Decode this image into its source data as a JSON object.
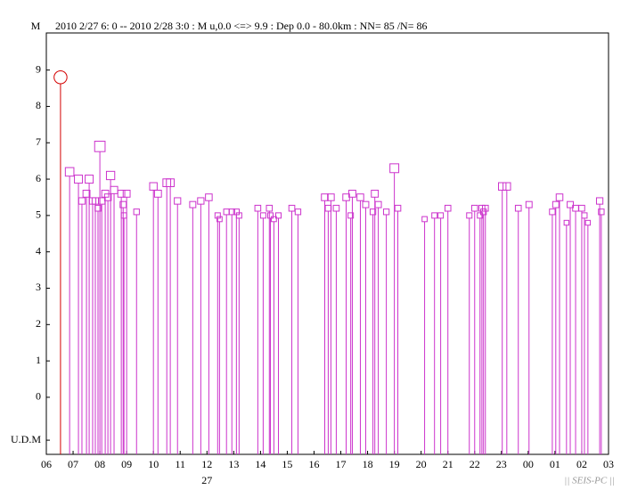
{
  "chart_data": {
    "type": "scatter",
    "y_label": "M",
    "title": "2010 2/27 6: 0 -- 2010 2/28 3:0  : M u,0.0 <=> 9.9   :  Dep 0.0 - 80.0km :  NN= 85 /N= 86",
    "date_label": "27",
    "date_label_x": 6,
    "footer": "|| SEIS-PC ||",
    "xlim": [
      0,
      21
    ],
    "ylim": [
      -1.57,
      10.02
    ],
    "xticks": [
      {
        "value": 0,
        "label": "06"
      },
      {
        "value": 1,
        "label": "07"
      },
      {
        "value": 2,
        "label": "08"
      },
      {
        "value": 3,
        "label": "09"
      },
      {
        "value": 4,
        "label": "10"
      },
      {
        "value": 5,
        "label": "11"
      },
      {
        "value": 6,
        "label": "12"
      },
      {
        "value": 7,
        "label": "13"
      },
      {
        "value": 8,
        "label": "14"
      },
      {
        "value": 9,
        "label": "15"
      },
      {
        "value": 10,
        "label": "16"
      },
      {
        "value": 11,
        "label": "17"
      },
      {
        "value": 12,
        "label": "18"
      },
      {
        "value": 13,
        "label": "19"
      },
      {
        "value": 14,
        "label": "20"
      },
      {
        "value": 15,
        "label": "21"
      },
      {
        "value": 16,
        "label": "22"
      },
      {
        "value": 17,
        "label": "23"
      },
      {
        "value": 18,
        "label": "00"
      },
      {
        "value": 19,
        "label": "01"
      },
      {
        "value": 20,
        "label": "02"
      },
      {
        "value": 21,
        "label": "03"
      }
    ],
    "yticks": [
      {
        "value": -1.18,
        "label": "U.D.M"
      },
      0,
      1,
      2,
      3,
      4,
      5,
      6,
      7,
      8,
      9
    ],
    "series": [
      {
        "color": "#d40000",
        "marker": "circle",
        "x": [
          0.53
        ],
        "values": [
          8.8
        ]
      },
      {
        "color": "#cc33cc",
        "marker": "square",
        "x": [
          0.87,
          1.2,
          1.33,
          1.5,
          1.6,
          1.73,
          1.83,
          1.93,
          2.0,
          2.07,
          2.2,
          2.3,
          2.4,
          2.53,
          2.8,
          2.87,
          2.9,
          3.0,
          3.37,
          4.0,
          4.17,
          4.5,
          4.63,
          4.9,
          5.47,
          5.77,
          6.07,
          6.4,
          6.47,
          6.73,
          6.93,
          7.1,
          7.2,
          7.9,
          8.1,
          8.33,
          8.37,
          8.5,
          8.67,
          9.17,
          9.4,
          10.4,
          10.53,
          10.63,
          10.83,
          11.2,
          11.37,
          11.43,
          11.73,
          11.93,
          12.2,
          12.27,
          12.4,
          12.7,
          13.0,
          13.13,
          14.13,
          14.5,
          14.73,
          15.0,
          15.8,
          16.0,
          16.2,
          16.27,
          16.33,
          16.4,
          17.03,
          17.2,
          17.63,
          18.03,
          18.9,
          19.03,
          19.17,
          19.43,
          19.57,
          19.77,
          20.0,
          20.1,
          20.23,
          20.67,
          20.73
        ],
        "values": [
          6.2,
          6.0,
          5.4,
          5.6,
          6.0,
          5.4,
          5.4,
          5.2,
          6.9,
          5.4,
          5.6,
          5.5,
          6.1,
          5.7,
          5.6,
          5.3,
          5.0,
          5.6,
          5.1,
          5.8,
          5.6,
          5.9,
          5.9,
          5.4,
          5.3,
          5.4,
          5.5,
          5.0,
          4.9,
          5.1,
          5.1,
          5.1,
          5.0,
          5.2,
          5.0,
          5.2,
          5.0,
          4.9,
          5.0,
          5.2,
          5.1,
          5.5,
          5.2,
          5.5,
          5.2,
          5.5,
          5.0,
          5.6,
          5.5,
          5.3,
          5.1,
          5.6,
          5.3,
          5.1,
          6.3,
          5.2,
          4.9,
          5.0,
          5.0,
          5.2,
          5.0,
          5.2,
          5.0,
          5.2,
          5.1,
          5.2,
          5.8,
          5.8,
          5.2,
          5.3,
          5.1,
          5.3,
          5.5,
          4.8,
          5.3,
          5.2,
          5.2,
          5.0,
          4.8,
          5.4,
          5.1
        ]
      }
    ]
  }
}
